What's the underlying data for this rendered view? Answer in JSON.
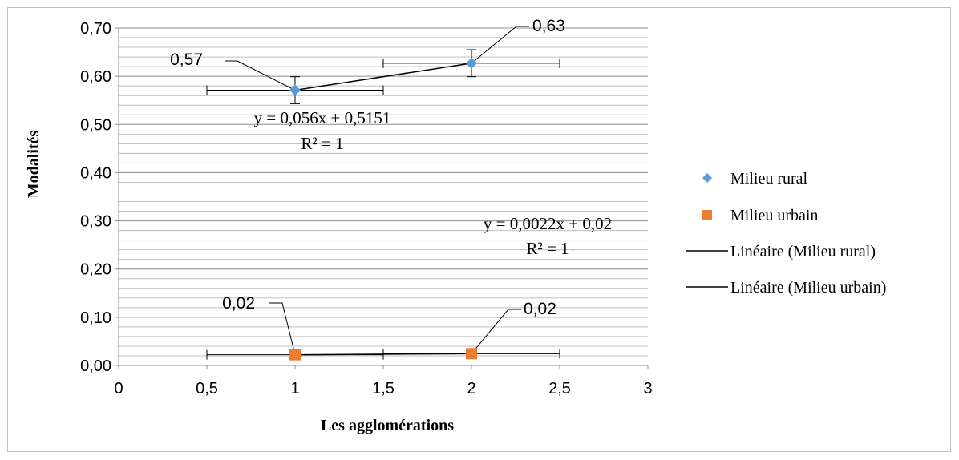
{
  "chart_data": {
    "type": "scatter",
    "xlabel": "Les agglomérations",
    "ylabel": "Modalités",
    "xlim": [
      0,
      3
    ],
    "ylim": [
      0,
      0.7
    ],
    "x_ticks": [
      "0",
      "0,5",
      "1",
      "1,5",
      "2",
      "2,5",
      "3"
    ],
    "y_ticks": [
      "0,00",
      "0,10",
      "0,20",
      "0,30",
      "0,40",
      "0,50",
      "0,60",
      "0,70"
    ],
    "grid": "horizontal major and minor",
    "legend_position": "right",
    "series": [
      {
        "name": "Milieu rural",
        "marker": "diamond",
        "color": "#5b9bd5",
        "points": [
          {
            "x": 1,
            "y": 0.5711,
            "label": "0,57",
            "y_err": 0.028,
            "x_err": 0.5
          },
          {
            "x": 2,
            "y": 0.6271,
            "label": "0,63",
            "y_err": 0.028,
            "x_err": 0.5
          }
        ],
        "trendline": {
          "name": "Linéaire (Milieu rural)",
          "slope": 0.056,
          "intercept": 0.5151,
          "equation": "y = 0,056x + 0,5151",
          "r2": "R² = 1"
        }
      },
      {
        "name": "Milieu urbain",
        "marker": "square",
        "color": "#ed7d31",
        "points": [
          {
            "x": 1,
            "y": 0.0222,
            "label": "0,02",
            "x_err": 0.5
          },
          {
            "x": 2,
            "y": 0.0244,
            "label": "0,02",
            "x_err": 0.5
          }
        ],
        "trendline": {
          "name": "Linéaire (Milieu urbain)",
          "slope": 0.0022,
          "intercept": 0.02,
          "equation": "y = 0,0022x + 0,02",
          "r2": "R² = 1"
        }
      }
    ]
  }
}
